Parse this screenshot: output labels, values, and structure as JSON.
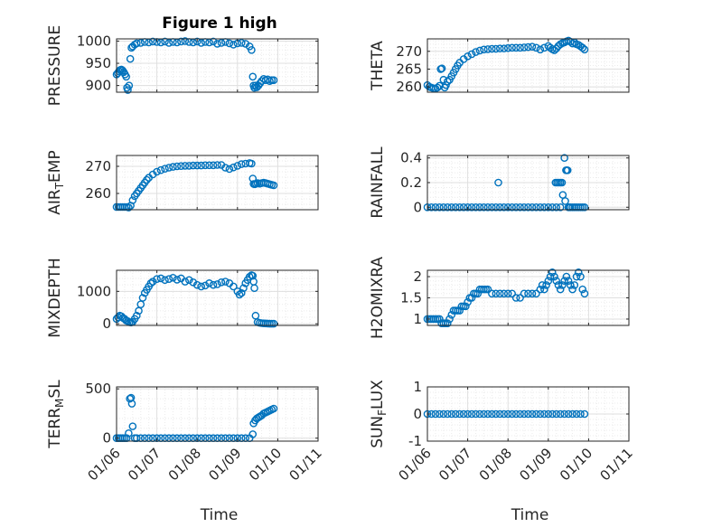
{
  "figure": {
    "title": "Figure 1 high"
  },
  "colors": {
    "marker": "#0072bd",
    "axes": "#262626",
    "major_grid": "#dfdfdf",
    "minor_grid": "#ebebeb"
  },
  "x_axis": {
    "tick_labels": [
      "01/06",
      "01/07",
      "01/08",
      "01/09",
      "01/10",
      "01/11"
    ],
    "label": "Time",
    "range_days": [
      0,
      5
    ]
  },
  "chart_data": [
    {
      "type": "scatter",
      "ylabel": "PRESSURE",
      "ylim": [
        885,
        1005
      ],
      "yticks": [
        900,
        950,
        1000
      ],
      "grid": true,
      "minor_grid": true,
      "title": "Figure 1 high",
      "ylabel_sub": "",
      "ylabel_prefix": "",
      "ylabel_suffix": "",
      "series": [
        {
          "x": [
            0.0,
            0.03,
            0.06,
            0.09,
            0.12,
            0.15,
            0.18,
            0.21,
            0.24,
            0.26,
            0.28,
            0.31,
            0.34,
            0.37,
            0.4,
            0.45,
            0.5,
            0.6,
            0.7,
            0.8,
            0.9,
            1.0,
            1.1,
            1.2,
            1.3,
            1.4,
            1.5,
            1.6,
            1.7,
            1.8,
            1.9,
            2.0,
            2.1,
            2.2,
            2.3,
            2.4,
            2.5,
            2.6,
            2.7,
            2.8,
            2.9,
            3.0,
            3.1,
            3.2,
            3.3,
            3.35,
            3.38,
            3.4,
            3.42,
            3.45,
            3.48,
            3.52,
            3.56,
            3.6,
            3.65,
            3.7,
            3.75,
            3.8,
            3.85,
            3.9
          ],
          "y": [
            925,
            928,
            932,
            935,
            936,
            934,
            930,
            925,
            920,
            895,
            890,
            900,
            960,
            985,
            988,
            992,
            995,
            996,
            998,
            997,
            999,
            998,
            997,
            999,
            996,
            998,
            997,
            999,
            1000,
            998,
            997,
            999,
            996,
            998,
            997,
            999,
            994,
            996,
            998,
            995,
            992,
            995,
            996,
            994,
            988,
            980,
            920,
            900,
            895,
            900,
            896,
            900,
            905,
            910,
            915,
            912,
            914,
            910,
            912,
            912
          ]
        }
      ]
    },
    {
      "type": "scatter",
      "ylabel": "THETA",
      "ylim": [
        258.5,
        273.5
      ],
      "yticks": [
        260,
        265,
        270
      ],
      "grid": true,
      "minor_grid": true,
      "series": [
        {
          "x": [
            0.0,
            0.05,
            0.1,
            0.15,
            0.2,
            0.25,
            0.3,
            0.33,
            0.36,
            0.4,
            0.43,
            0.46,
            0.5,
            0.55,
            0.6,
            0.65,
            0.7,
            0.75,
            0.8,
            0.9,
            1.0,
            1.1,
            1.2,
            1.3,
            1.4,
            1.5,
            1.6,
            1.7,
            1.8,
            1.9,
            2.0,
            2.1,
            2.2,
            2.3,
            2.4,
            2.5,
            2.6,
            2.7,
            2.8,
            2.9,
            3.0,
            3.05,
            3.1,
            3.15,
            3.2,
            3.25,
            3.3,
            3.35,
            3.4,
            3.45,
            3.5,
            3.55,
            3.6,
            3.65,
            3.7,
            3.75,
            3.8,
            3.85,
            3.9
          ],
          "y": [
            260.5,
            260.0,
            259.8,
            259.6,
            259.5,
            259.8,
            260.3,
            265.0,
            265.2,
            262.0,
            259.8,
            260.5,
            261.5,
            262.0,
            263.0,
            264.0,
            265.0,
            266.0,
            266.8,
            267.8,
            268.6,
            269.2,
            269.8,
            270.2,
            270.5,
            270.6,
            270.7,
            270.7,
            270.8,
            270.8,
            270.9,
            271.0,
            271.0,
            271.0,
            271.1,
            271.2,
            271.3,
            271.0,
            270.5,
            271.0,
            271.5,
            271.0,
            270.6,
            270.3,
            270.8,
            271.5,
            272.0,
            272.3,
            272.5,
            272.8,
            273.0,
            272.7,
            272.2,
            272.5,
            272.0,
            271.8,
            271.4,
            271.0,
            270.5
          ]
        }
      ]
    },
    {
      "type": "scatter",
      "ylabel": "AIR",
      "ylabel_sub": "T",
      "ylabel_suffix": "EMP",
      "ylim": [
        254,
        274
      ],
      "yticks": [
        260,
        270
      ],
      "grid": true,
      "minor_grid": true,
      "series": [
        {
          "x": [
            0.0,
            0.05,
            0.1,
            0.15,
            0.2,
            0.25,
            0.3,
            0.35,
            0.4,
            0.45,
            0.5,
            0.55,
            0.6,
            0.65,
            0.7,
            0.75,
            0.8,
            0.9,
            1.0,
            1.1,
            1.2,
            1.3,
            1.4,
            1.5,
            1.6,
            1.7,
            1.8,
            1.9,
            2.0,
            2.1,
            2.2,
            2.3,
            2.4,
            2.5,
            2.6,
            2.7,
            2.8,
            2.9,
            3.0,
            3.1,
            3.2,
            3.3,
            3.35,
            3.38,
            3.4,
            3.43,
            3.46,
            3.5,
            3.55,
            3.6,
            3.65,
            3.7,
            3.75,
            3.8,
            3.85,
            3.9
          ],
          "y": [
            255,
            255,
            255,
            255,
            255,
            255,
            254.8,
            255.5,
            257.5,
            259,
            260,
            261,
            262,
            263,
            264,
            265,
            265.8,
            267,
            268,
            268.6,
            269.1,
            269.5,
            269.8,
            270,
            270.1,
            270.2,
            270.2,
            270.3,
            270.3,
            270.3,
            270.4,
            270.4,
            270.4,
            270.5,
            270.5,
            269.5,
            269.0,
            269.6,
            270.2,
            270.8,
            271.0,
            271.2,
            271.0,
            265.5,
            263.5,
            263.4,
            263.6,
            263.8,
            263.6,
            263.8,
            264.0,
            263.8,
            263.6,
            263.4,
            263.2,
            263.0
          ]
        }
      ]
    },
    {
      "type": "scatter",
      "ylabel": "RAINFALL",
      "ylim": [
        -0.02,
        0.42
      ],
      "yticks": [
        0,
        0.2,
        0.4
      ],
      "ytick_labels": [
        "0",
        "0.2",
        "0.4"
      ],
      "grid": true,
      "minor_grid": true,
      "series": [
        {
          "x": [
            0.0,
            0.1,
            0.2,
            0.3,
            0.4,
            0.5,
            0.6,
            0.7,
            0.8,
            0.9,
            1.0,
            1.1,
            1.2,
            1.3,
            1.4,
            1.5,
            1.6,
            1.7,
            1.76,
            1.8,
            1.9,
            2.0,
            2.1,
            2.2,
            2.3,
            2.4,
            2.5,
            2.6,
            2.7,
            2.8,
            2.9,
            3.0,
            3.1,
            3.2,
            3.3,
            3.18,
            3.22,
            3.26,
            3.3,
            3.34,
            3.36,
            3.4,
            3.42,
            3.44,
            3.46,
            3.48,
            3.5,
            3.52,
            3.55,
            3.6,
            3.65,
            3.7,
            3.75,
            3.8,
            3.85,
            3.9
          ],
          "y": [
            0,
            0,
            0,
            0,
            0,
            0,
            0,
            0,
            0,
            0,
            0,
            0,
            0,
            0,
            0,
            0,
            0,
            0,
            0.2,
            0,
            0,
            0,
            0,
            0,
            0,
            0,
            0,
            0,
            0,
            0,
            0,
            0,
            0,
            0,
            0,
            0.2,
            0.2,
            0.2,
            0.2,
            0.2,
            0.1,
            0.4,
            0.05,
            0.3,
            0.3,
            0.3,
            0,
            0,
            0,
            0,
            0,
            0,
            0,
            0,
            0,
            0
          ]
        }
      ]
    },
    {
      "type": "scatter",
      "ylabel": "MIXDEPTH",
      "ylim": [
        -50,
        1650
      ],
      "yticks": [
        0,
        1000
      ],
      "grid": true,
      "minor_grid": true,
      "series": [
        {
          "x": [
            0.0,
            0.04,
            0.08,
            0.12,
            0.16,
            0.2,
            0.24,
            0.28,
            0.32,
            0.36,
            0.4,
            0.45,
            0.5,
            0.55,
            0.6,
            0.65,
            0.7,
            0.75,
            0.8,
            0.85,
            0.9,
            1.0,
            1.1,
            1.2,
            1.3,
            1.4,
            1.5,
            1.6,
            1.7,
            1.8,
            1.9,
            2.0,
            2.1,
            2.2,
            2.3,
            2.4,
            2.5,
            2.6,
            2.7,
            2.8,
            2.9,
            3.0,
            3.05,
            3.1,
            3.15,
            3.2,
            3.25,
            3.3,
            3.35,
            3.38,
            3.4,
            3.42,
            3.45,
            3.5,
            3.55,
            3.6,
            3.65,
            3.7,
            3.75,
            3.8,
            3.85,
            3.9
          ],
          "y": [
            150,
            200,
            250,
            230,
            180,
            150,
            100,
            80,
            50,
            40,
            60,
            150,
            250,
            400,
            600,
            800,
            950,
            1050,
            1150,
            1250,
            1300,
            1380,
            1400,
            1350,
            1380,
            1420,
            1360,
            1400,
            1300,
            1350,
            1280,
            1200,
            1150,
            1180,
            1250,
            1200,
            1220,
            1280,
            1300,
            1250,
            1150,
            1000,
            900,
            950,
            1100,
            1250,
            1350,
            1450,
            1500,
            1480,
            1300,
            1100,
            250,
            50,
            30,
            20,
            15,
            10,
            8,
            5,
            5,
            5
          ]
        }
      ]
    },
    {
      "type": "scatter",
      "ylabel": "H2OMIXRA",
      "ylim": [
        0.85,
        2.15
      ],
      "yticks": [
        1,
        1.5,
        2
      ],
      "ytick_labels": [
        "1",
        "1.5",
        "2"
      ],
      "grid": true,
      "minor_grid": true,
      "series": [
        {
          "x": [
            0.0,
            0.05,
            0.1,
            0.15,
            0.2,
            0.25,
            0.3,
            0.35,
            0.4,
            0.45,
            0.5,
            0.55,
            0.6,
            0.65,
            0.7,
            0.75,
            0.8,
            0.85,
            0.9,
            0.95,
            1.0,
            1.05,
            1.1,
            1.15,
            1.2,
            1.25,
            1.3,
            1.35,
            1.4,
            1.45,
            1.5,
            1.6,
            1.7,
            1.8,
            1.9,
            2.0,
            2.1,
            2.2,
            2.3,
            2.4,
            2.5,
            2.6,
            2.7,
            2.8,
            2.85,
            2.9,
            2.95,
            3.0,
            3.05,
            3.1,
            3.15,
            3.2,
            3.25,
            3.3,
            3.35,
            3.4,
            3.45,
            3.5,
            3.55,
            3.6,
            3.65,
            3.7,
            3.75,
            3.8,
            3.85,
            3.9
          ],
          "y": [
            1.0,
            1.0,
            1.0,
            1.0,
            1.0,
            1.0,
            1.0,
            0.9,
            0.9,
            0.9,
            0.9,
            1.0,
            1.1,
            1.2,
            1.2,
            1.2,
            1.2,
            1.3,
            1.3,
            1.3,
            1.4,
            1.5,
            1.5,
            1.6,
            1.6,
            1.6,
            1.7,
            1.7,
            1.7,
            1.7,
            1.7,
            1.6,
            1.6,
            1.6,
            1.6,
            1.6,
            1.6,
            1.5,
            1.5,
            1.6,
            1.6,
            1.6,
            1.6,
            1.7,
            1.8,
            1.7,
            1.8,
            1.9,
            2.0,
            2.1,
            2.0,
            1.9,
            1.8,
            1.7,
            1.8,
            1.9,
            2.0,
            1.9,
            1.8,
            1.7,
            1.8,
            2.0,
            2.1,
            2.0,
            1.7,
            1.6
          ]
        }
      ]
    },
    {
      "type": "scatter",
      "ylabel": "TERR",
      "ylabel_sub": "M",
      "ylabel_suffix": "SL",
      "ylim": [
        -30,
        520
      ],
      "yticks": [
        0,
        500
      ],
      "grid": true,
      "minor_grid": true,
      "series": [
        {
          "x": [
            0.0,
            0.05,
            0.1,
            0.15,
            0.2,
            0.25,
            0.3,
            0.33,
            0.36,
            0.38,
            0.4,
            0.45,
            0.5,
            0.6,
            0.7,
            0.8,
            0.9,
            1.0,
            1.1,
            1.2,
            1.3,
            1.4,
            1.5,
            1.6,
            1.7,
            1.8,
            1.9,
            2.0,
            2.1,
            2.2,
            2.3,
            2.4,
            2.5,
            2.6,
            2.7,
            2.8,
            2.9,
            3.0,
            3.1,
            3.2,
            3.3,
            3.38,
            3.4,
            3.44,
            3.48,
            3.52,
            3.56,
            3.6,
            3.65,
            3.7,
            3.75,
            3.8,
            3.85,
            3.9
          ],
          "y": [
            0,
            0,
            0,
            0,
            0,
            0,
            50,
            400,
            410,
            350,
            120,
            0,
            0,
            0,
            0,
            0,
            0,
            0,
            0,
            0,
            0,
            0,
            0,
            0,
            0,
            0,
            0,
            0,
            0,
            0,
            0,
            0,
            0,
            0,
            0,
            0,
            0,
            0,
            0,
            0,
            0,
            40,
            150,
            180,
            200,
            210,
            220,
            230,
            250,
            260,
            270,
            280,
            290,
            300
          ]
        }
      ]
    },
    {
      "type": "scatter",
      "ylabel": "SUN",
      "ylabel_sub": "F",
      "ylabel_suffix": "LUX",
      "ylim": [
        -1,
        1
      ],
      "yticks": [
        -1,
        0,
        1
      ],
      "grid": true,
      "minor_grid": true,
      "series": [
        {
          "x": [
            0.0,
            0.1,
            0.2,
            0.3,
            0.4,
            0.5,
            0.6,
            0.7,
            0.8,
            0.9,
            1.0,
            1.1,
            1.2,
            1.3,
            1.4,
            1.5,
            1.6,
            1.7,
            1.8,
            1.9,
            2.0,
            2.1,
            2.2,
            2.3,
            2.4,
            2.5,
            2.6,
            2.7,
            2.8,
            2.9,
            3.0,
            3.1,
            3.2,
            3.3,
            3.4,
            3.5,
            3.6,
            3.7,
            3.8,
            3.9
          ],
          "y": [
            0,
            0,
            0,
            0,
            0,
            0,
            0,
            0,
            0,
            0,
            0,
            0,
            0,
            0,
            0,
            0,
            0,
            0,
            0,
            0,
            0,
            0,
            0,
            0,
            0,
            0,
            0,
            0,
            0,
            0,
            0,
            0,
            0,
            0,
            0,
            0,
            0,
            0,
            0,
            0
          ]
        }
      ]
    }
  ]
}
